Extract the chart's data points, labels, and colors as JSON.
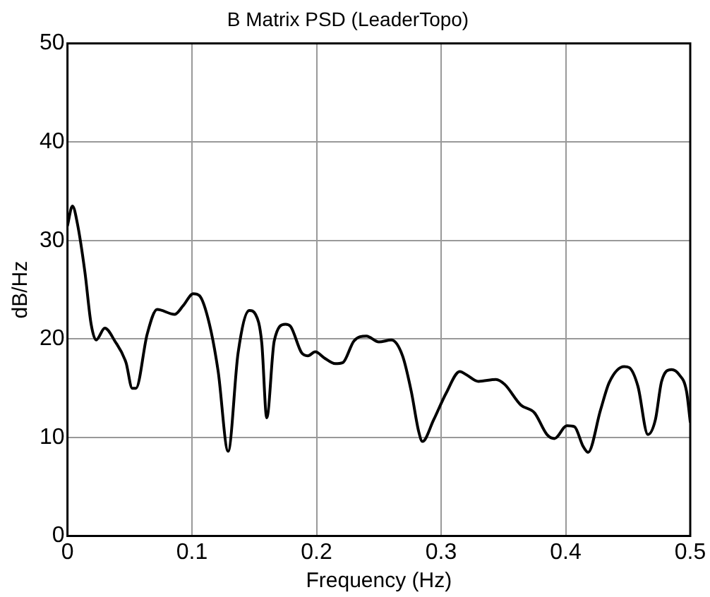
{
  "chart_data": {
    "type": "line",
    "title": "B Matrix PSD (LeaderTopo)",
    "xlabel": "Frequency (Hz)",
    "ylabel": "dB/Hz",
    "x": [
      0,
      0.004,
      0.008,
      0.014,
      0.019,
      0.023,
      0.03,
      0.038,
      0.047,
      0.052,
      0.055,
      0.064,
      0.072,
      0.086,
      0.093,
      0.101,
      0.106,
      0.114,
      0.121,
      0.129,
      0.137,
      0.146,
      0.151,
      0.156,
      0.16,
      0.166,
      0.175,
      0.179,
      0.188,
      0.193,
      0.199,
      0.206,
      0.215,
      0.221,
      0.23,
      0.24,
      0.25,
      0.26,
      0.269,
      0.276,
      0.282,
      0.285,
      0.294,
      0.304,
      0.315,
      0.32,
      0.33,
      0.344,
      0.351,
      0.364,
      0.375,
      0.385,
      0.391,
      0.401,
      0.407,
      0.414,
      0.418,
      0.428,
      0.435,
      0.447,
      0.451,
      0.458,
      0.466,
      0.472,
      0.477,
      0.485,
      0.491,
      0.497,
      0.5
    ],
    "series": [
      {
        "color": "#000000",
        "values": [
          31.5,
          33.5,
          31.7,
          26.8,
          21.5,
          19.9,
          21.1,
          19.8,
          17.6,
          15.0,
          15.0,
          20.5,
          23.0,
          22.5,
          23.4,
          24.6,
          24.4,
          21.5,
          16.7,
          8.6,
          18.6,
          22.9,
          22.5,
          19.6,
          12.0,
          19.8,
          21.5,
          21.3,
          18.6,
          18.3,
          18.7,
          18.1,
          17.5,
          17.6,
          19.8,
          20.3,
          19.7,
          19.9,
          18.3,
          14.7,
          10.6,
          9.6,
          11.8,
          14.5,
          16.7,
          16.4,
          15.7,
          15.9,
          15.4,
          13.3,
          12.5,
          10.3,
          9.9,
          11.2,
          11.1,
          9.1,
          8.5,
          12.8,
          15.6,
          17.2,
          17.1,
          15.2,
          10.3,
          11.8,
          15.7,
          16.9,
          16.4,
          14.7,
          11.6
        ]
      }
    ],
    "xlim": [
      0,
      0.5
    ],
    "xticks": [
      0,
      0.1,
      0.2,
      0.3,
      0.4,
      0.5
    ],
    "ylim": [
      0,
      50
    ],
    "yticks": [
      0,
      10,
      20,
      30,
      40,
      50
    ],
    "grid": true,
    "legend": false,
    "marker": "none",
    "line_style": "solid"
  }
}
